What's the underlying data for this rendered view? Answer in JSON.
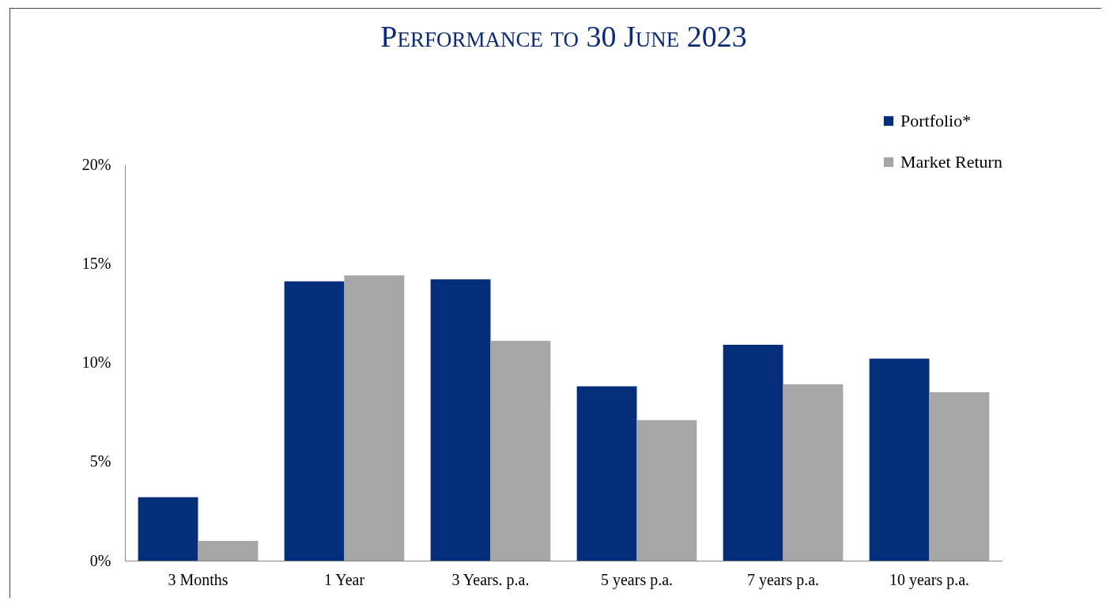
{
  "chart_data": {
    "type": "bar",
    "title": "Performance to 30 June 2023",
    "categories": [
      "3 Months",
      "1 Year",
      "3 Years. p.a.",
      "5 years p.a.",
      "7 years p.a.",
      "10 years p.a."
    ],
    "series": [
      {
        "name": "Portfolio*",
        "color": "#052e7a",
        "values": [
          3.2,
          14.1,
          14.2,
          8.8,
          10.9,
          10.2
        ]
      },
      {
        "name": "Market Return",
        "color": "#a6a6a6",
        "values": [
          1.0,
          14.4,
          11.1,
          7.1,
          8.9,
          8.5
        ]
      }
    ],
    "ylim": [
      0,
      20
    ],
    "yticks": [
      {
        "value": 0,
        "label": "0%"
      },
      {
        "value": 5,
        "label": "5%"
      },
      {
        "value": 10,
        "label": "10%"
      },
      {
        "value": 15,
        "label": "15%"
      },
      {
        "value": 20,
        "label": "20%"
      }
    ],
    "grid": false,
    "legend": "top right"
  }
}
